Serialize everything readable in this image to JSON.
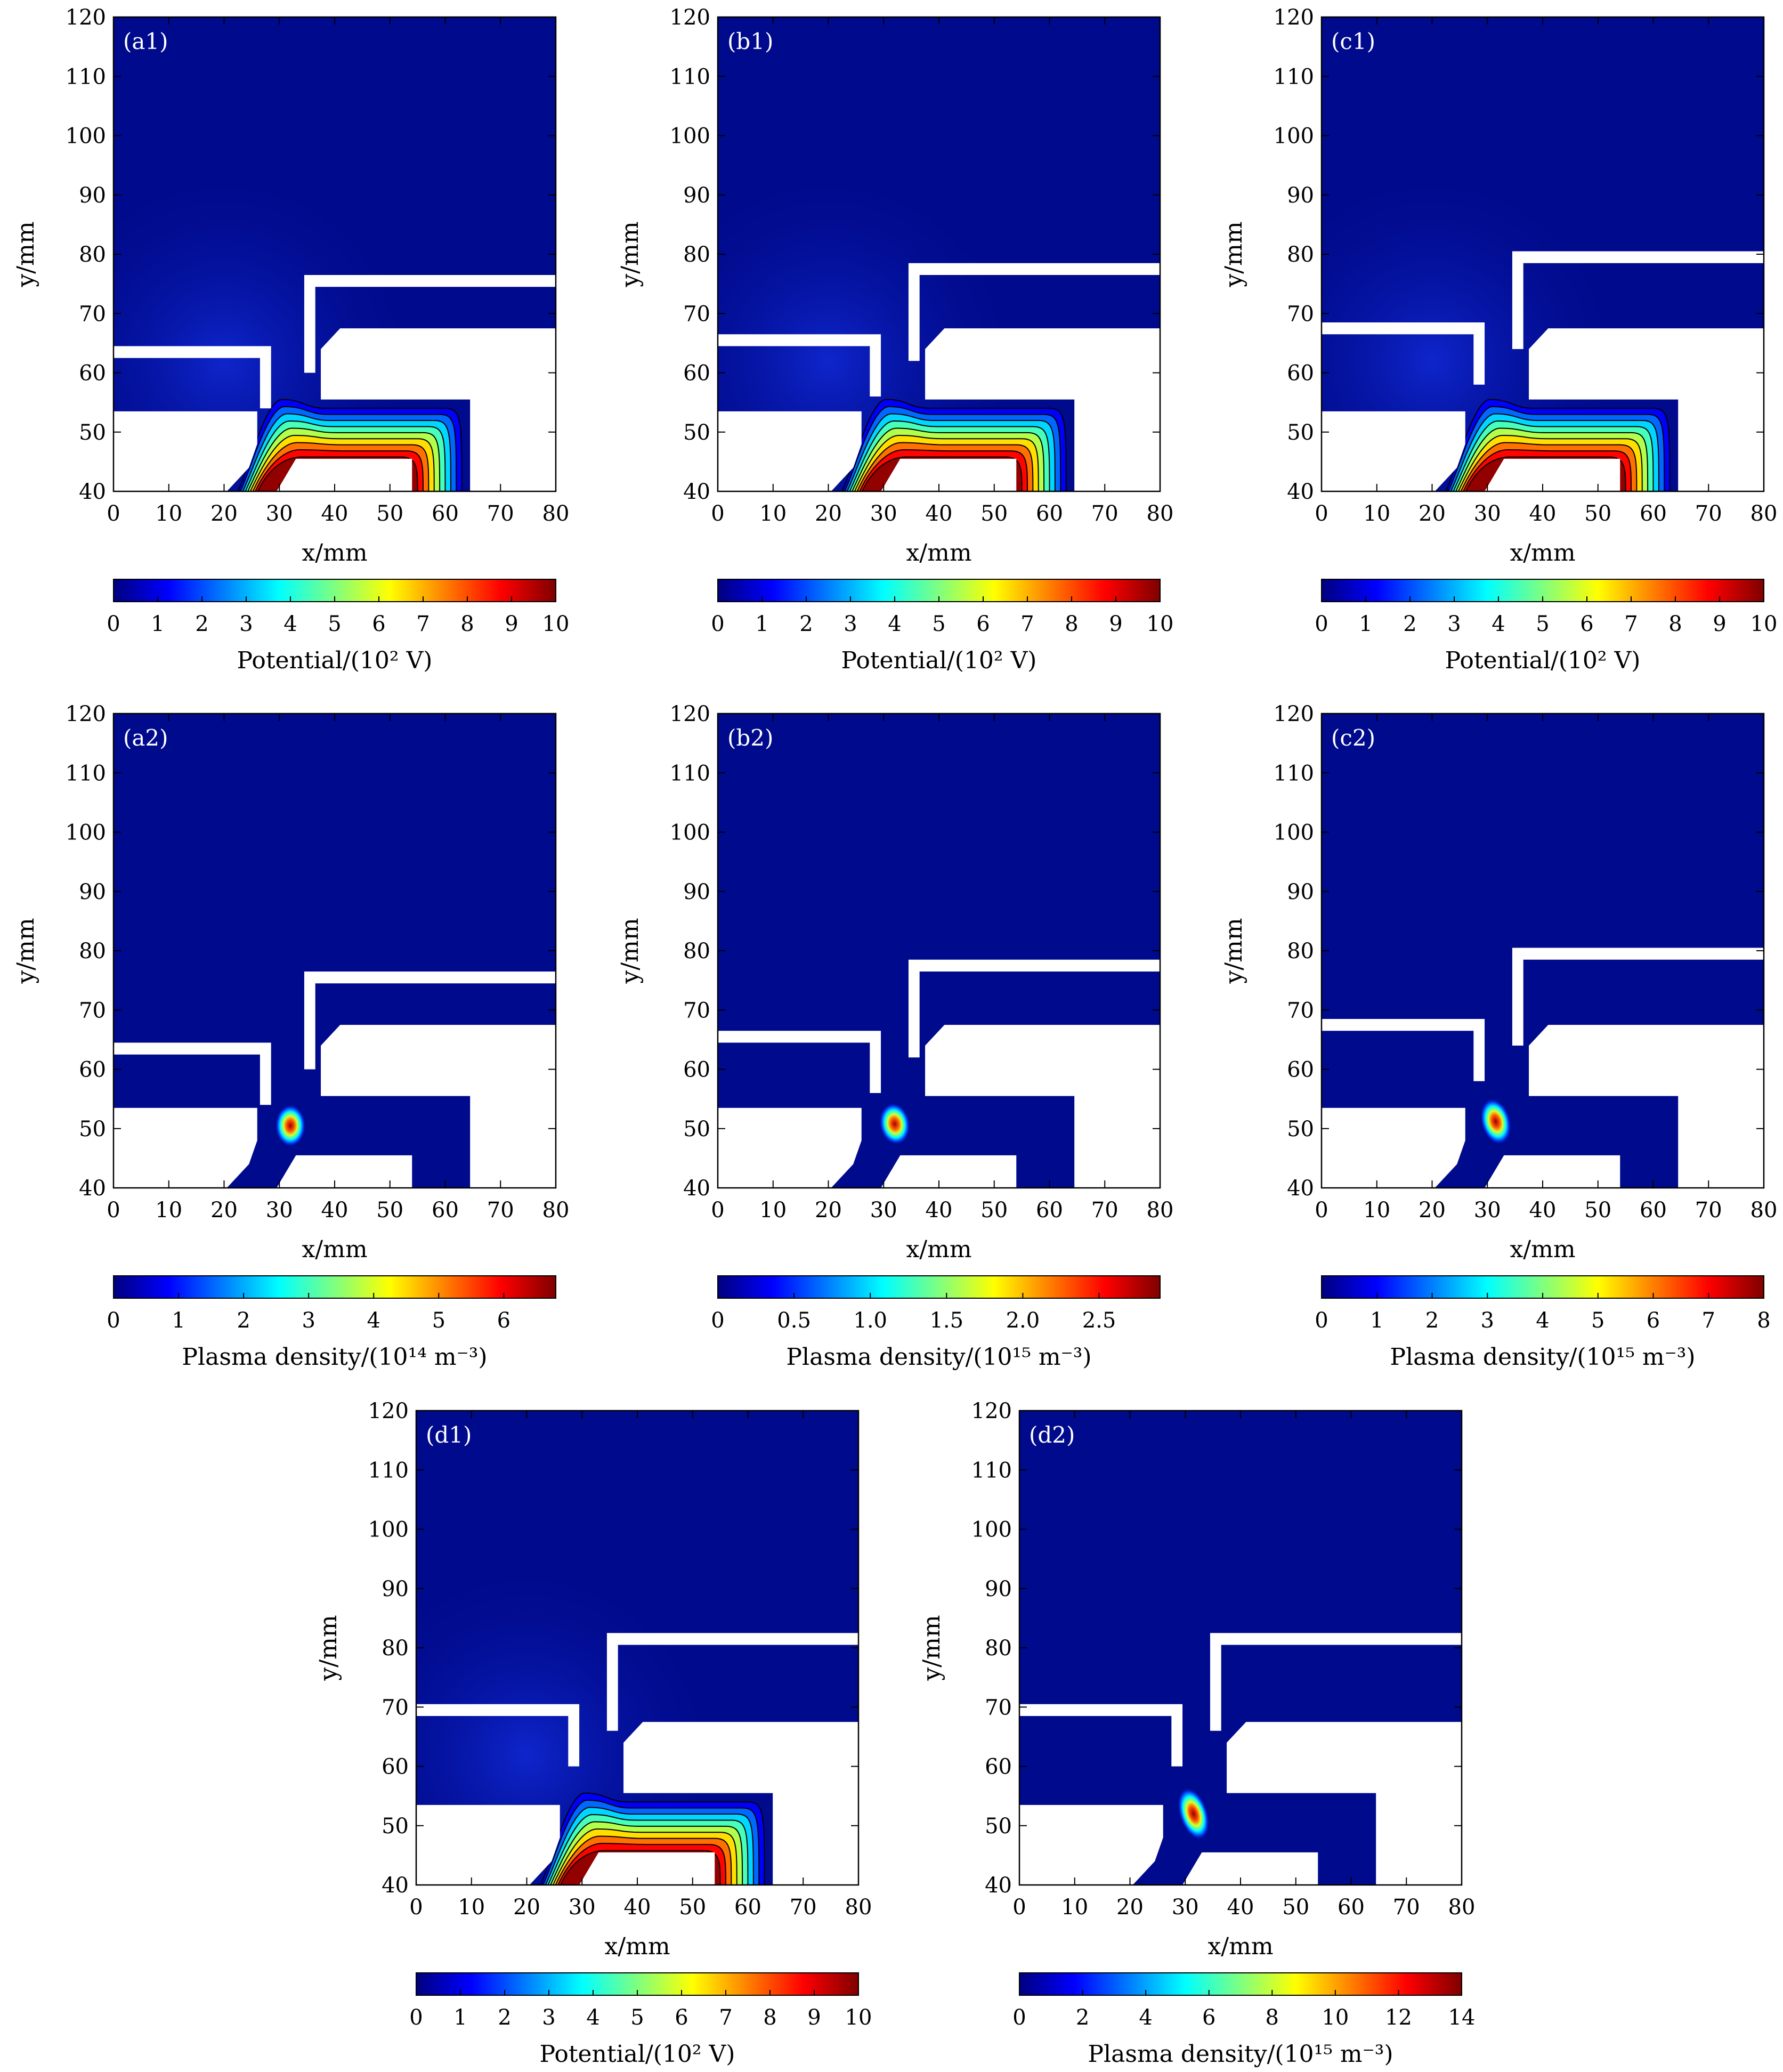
{
  "chart_data": [
    {
      "id": "a1",
      "type": "heatmap",
      "panel_label": "(a1)",
      "field": "potential",
      "xlabel": "x/mm",
      "ylabel": "y/mm",
      "xlim": [
        0,
        80
      ],
      "ylim": [
        40,
        120
      ],
      "xticks": [
        "0",
        "10",
        "20",
        "30",
        "40",
        "50",
        "60",
        "70",
        "80"
      ],
      "yticks": [
        "40",
        "50",
        "60",
        "70",
        "80",
        "90",
        "100",
        "110",
        "120"
      ],
      "electrode_upper_left": {
        "y_top": 64.5,
        "x_right": 28.5
      },
      "electrode_upper_right": {
        "y_top": 76.5,
        "x_left": 34.5,
        "y_bottom": 60
      },
      "colorbar": {
        "ticks": [
          "0",
          "1",
          "2",
          "3",
          "4",
          "5",
          "6",
          "7",
          "8",
          "9",
          "10"
        ],
        "min": 0,
        "max": 10,
        "label": "Potential/(10² V)"
      }
    },
    {
      "id": "b1",
      "type": "heatmap",
      "panel_label": "(b1)",
      "field": "potential",
      "xlabel": "x/mm",
      "ylabel": "y/mm",
      "xlim": [
        0,
        80
      ],
      "ylim": [
        40,
        120
      ],
      "xticks": [
        "0",
        "10",
        "20",
        "30",
        "40",
        "50",
        "60",
        "70",
        "80"
      ],
      "yticks": [
        "40",
        "50",
        "60",
        "70",
        "80",
        "90",
        "100",
        "110",
        "120"
      ],
      "electrode_upper_left": {
        "y_top": 66.5,
        "x_right": 29.5
      },
      "electrode_upper_right": {
        "y_top": 78.5,
        "x_left": 34.5,
        "y_bottom": 62
      },
      "colorbar": {
        "ticks": [
          "0",
          "1",
          "2",
          "3",
          "4",
          "5",
          "6",
          "7",
          "8",
          "9",
          "10"
        ],
        "min": 0,
        "max": 10,
        "label": "Potential/(10² V)"
      }
    },
    {
      "id": "c1",
      "type": "heatmap",
      "panel_label": "(c1)",
      "field": "potential",
      "xlabel": "x/mm",
      "ylabel": "y/mm",
      "xlim": [
        0,
        80
      ],
      "ylim": [
        40,
        120
      ],
      "xticks": [
        "0",
        "10",
        "20",
        "30",
        "40",
        "50",
        "60",
        "70",
        "80"
      ],
      "yticks": [
        "40",
        "50",
        "60",
        "70",
        "80",
        "90",
        "100",
        "110",
        "120"
      ],
      "electrode_upper_left": {
        "y_top": 68.5,
        "x_right": 29.5
      },
      "electrode_upper_right": {
        "y_top": 80.5,
        "x_left": 34.5,
        "y_bottom": 64
      },
      "colorbar": {
        "ticks": [
          "0",
          "1",
          "2",
          "3",
          "4",
          "5",
          "6",
          "7",
          "8",
          "9",
          "10"
        ],
        "min": 0,
        "max": 10,
        "label": "Potential/(10² V)"
      }
    },
    {
      "id": "a2",
      "type": "heatmap",
      "panel_label": "(a2)",
      "field": "density",
      "xlabel": "x/mm",
      "ylabel": "y/mm",
      "xlim": [
        0,
        80
      ],
      "ylim": [
        40,
        120
      ],
      "xticks": [
        "0",
        "10",
        "20",
        "30",
        "40",
        "50",
        "60",
        "70",
        "80"
      ],
      "yticks": [
        "40",
        "50",
        "60",
        "70",
        "80",
        "90",
        "100",
        "110",
        "120"
      ],
      "electrode_upper_left": {
        "y_top": 64.5,
        "x_right": 28.5
      },
      "electrode_upper_right": {
        "y_top": 76.5,
        "x_left": 34.5,
        "y_bottom": 60
      },
      "hotspot": {
        "x": 32,
        "y": 50.5,
        "rx": 2.8,
        "ry": 3.6,
        "tilt": 0,
        "peak": 6.6
      },
      "colorbar": {
        "ticks": [
          "0",
          "1",
          "2",
          "3",
          "4",
          "5",
          "6"
        ],
        "tick_values": [
          0,
          1,
          2,
          3,
          4,
          5,
          6
        ],
        "min": 0,
        "max": 6.8,
        "label": "Plasma density/(10¹⁴ m⁻³)"
      }
    },
    {
      "id": "b2",
      "type": "heatmap",
      "panel_label": "(b2)",
      "field": "density",
      "xlabel": "x/mm",
      "ylabel": "y/mm",
      "xlim": [
        0,
        80
      ],
      "ylim": [
        40,
        120
      ],
      "xticks": [
        "0",
        "10",
        "20",
        "30",
        "40",
        "50",
        "60",
        "70",
        "80"
      ],
      "yticks": [
        "40",
        "50",
        "60",
        "70",
        "80",
        "90",
        "100",
        "110",
        "120"
      ],
      "electrode_upper_left": {
        "y_top": 66.5,
        "x_right": 29.5
      },
      "electrode_upper_right": {
        "y_top": 78.5,
        "x_left": 34.5,
        "y_bottom": 62
      },
      "hotspot": {
        "x": 32,
        "y": 50.8,
        "rx": 2.8,
        "ry": 3.6,
        "tilt": -10,
        "peak": 2.8
      },
      "colorbar": {
        "ticks": [
          "0",
          "0.5",
          "1.0",
          "1.5",
          "2.0",
          "2.5"
        ],
        "tick_values": [
          0,
          0.5,
          1.0,
          1.5,
          2.0,
          2.5
        ],
        "min": 0,
        "max": 2.9,
        "label": "Plasma density/(10¹⁵ m⁻³)"
      }
    },
    {
      "id": "c2",
      "type": "heatmap",
      "panel_label": "(c2)",
      "field": "density",
      "xlabel": "x/mm",
      "ylabel": "y/mm",
      "xlim": [
        0,
        80
      ],
      "ylim": [
        40,
        120
      ],
      "xticks": [
        "0",
        "10",
        "20",
        "30",
        "40",
        "50",
        "60",
        "70",
        "80"
      ],
      "yticks": [
        "40",
        "50",
        "60",
        "70",
        "80",
        "90",
        "100",
        "110",
        "120"
      ],
      "electrode_upper_left": {
        "y_top": 68.5,
        "x_right": 29.5
      },
      "electrode_upper_right": {
        "y_top": 80.5,
        "x_left": 34.5,
        "y_bottom": 64
      },
      "hotspot": {
        "x": 31.5,
        "y": 51.2,
        "rx": 2.7,
        "ry": 4.0,
        "tilt": -15,
        "peak": 7.8
      },
      "colorbar": {
        "ticks": [
          "0",
          "1",
          "2",
          "3",
          "4",
          "5",
          "6",
          "7",
          "8"
        ],
        "tick_values": [
          0,
          1,
          2,
          3,
          4,
          5,
          6,
          7,
          8
        ],
        "min": 0,
        "max": 8,
        "label": "Plasma density/(10¹⁵ m⁻³)"
      }
    },
    {
      "id": "d1",
      "type": "heatmap",
      "panel_label": "(d1)",
      "field": "potential",
      "xlabel": "x/mm",
      "ylabel": "y/mm",
      "xlim": [
        0,
        80
      ],
      "ylim": [
        40,
        120
      ],
      "xticks": [
        "0",
        "10",
        "20",
        "30",
        "40",
        "50",
        "60",
        "70",
        "80"
      ],
      "yticks": [
        "40",
        "50",
        "60",
        "70",
        "80",
        "90",
        "100",
        "110",
        "120"
      ],
      "electrode_upper_left": {
        "y_top": 70.5,
        "x_right": 29.5
      },
      "electrode_upper_right": {
        "y_top": 82.5,
        "x_left": 34.5,
        "y_bottom": 66
      },
      "colorbar": {
        "ticks": [
          "0",
          "1",
          "2",
          "3",
          "4",
          "5",
          "6",
          "7",
          "8",
          "9",
          "10"
        ],
        "min": 0,
        "max": 10,
        "label": "Potential/(10² V)"
      }
    },
    {
      "id": "d2",
      "type": "heatmap",
      "panel_label": "(d2)",
      "field": "density",
      "xlabel": "x/mm",
      "ylabel": "y/mm",
      "xlim": [
        0,
        80
      ],
      "ylim": [
        40,
        120
      ],
      "xticks": [
        "0",
        "10",
        "20",
        "30",
        "40",
        "50",
        "60",
        "70",
        "80"
      ],
      "yticks": [
        "40",
        "50",
        "60",
        "70",
        "80",
        "90",
        "100",
        "110",
        "120"
      ],
      "electrode_upper_left": {
        "y_top": 70.5,
        "x_right": 29.5
      },
      "electrode_upper_right": {
        "y_top": 82.5,
        "x_left": 34.5,
        "y_bottom": 66
      },
      "hotspot": {
        "x": 31.5,
        "y": 52,
        "rx": 2.6,
        "ry": 4.6,
        "tilt": -18,
        "peak": 13.8
      },
      "colorbar": {
        "ticks": [
          "0",
          "2",
          "4",
          "6",
          "8",
          "10",
          "12",
          "14"
        ],
        "tick_values": [
          0,
          2,
          4,
          6,
          8,
          10,
          12,
          14
        ],
        "min": 0,
        "max": 14,
        "label": "Plasma density/(10¹⁵ m⁻³)"
      }
    }
  ],
  "colormap": [
    "#00007f",
    "#0000ff",
    "#007fff",
    "#00ffff",
    "#7fff7f",
    "#ffff00",
    "#ff7f00",
    "#ff0000",
    "#7f0000"
  ],
  "background_color": "#000a8c"
}
